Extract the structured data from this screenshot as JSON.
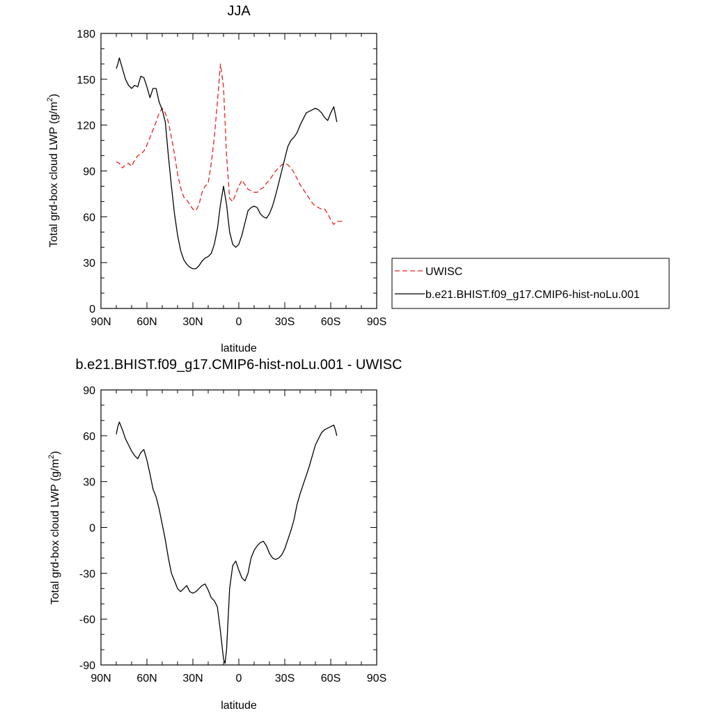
{
  "chart_data": [
    {
      "type": "line",
      "title": "JJA",
      "xlabel": "latitude",
      "ylabel": "Total grd-box cloud LWP (g/m²)",
      "ylabel_main": "Total grd-box cloud LWP (g/m",
      "ylabel_sup": "2",
      "ylabel_end": ")",
      "xlim": [
        90,
        -90
      ],
      "ylim": [
        0,
        180
      ],
      "xticks": [
        90,
        60,
        30,
        0,
        -30,
        -60,
        -90
      ],
      "xtick_labels": [
        "90N",
        "60N",
        "30N",
        "0",
        "30S",
        "60S",
        "90S"
      ],
      "yticks": [
        0,
        30,
        60,
        90,
        120,
        150,
        180
      ],
      "ytick_labels": [
        "0",
        "30",
        "60",
        "90",
        "120",
        "150",
        "180"
      ],
      "legend_position": "right",
      "series": [
        {
          "name": "UWISC",
          "color": "#e8201c",
          "dashed": true,
          "x": [
            80,
            78,
            76,
            74,
            72,
            70,
            68,
            66,
            64,
            62,
            60,
            58,
            56,
            54,
            52,
            50,
            48,
            46,
            44,
            42,
            40,
            38,
            36,
            34,
            32,
            30,
            28,
            26,
            24,
            22,
            20,
            18,
            16,
            14,
            12,
            10,
            8,
            6,
            4,
            2,
            0,
            -2,
            -4,
            -6,
            -8,
            -10,
            -12,
            -14,
            -16,
            -18,
            -20,
            -22,
            -24,
            -26,
            -28,
            -30,
            -32,
            -34,
            -36,
            -38,
            -40,
            -42,
            -44,
            -46,
            -48,
            -50,
            -52,
            -54,
            -56,
            -58,
            -60,
            -62,
            -64,
            -66,
            -68
          ],
          "y": [
            96,
            95,
            92,
            94,
            95,
            93,
            97,
            100,
            101,
            103,
            107,
            112,
            117,
            122,
            128,
            131,
            128,
            122,
            112,
            101,
            88,
            79,
            73,
            71,
            68,
            65,
            64,
            68,
            76,
            80,
            82,
            95,
            112,
            135,
            160,
            145,
            100,
            72,
            70,
            75,
            80,
            84,
            81,
            78,
            77,
            76,
            76,
            78,
            79,
            82,
            84,
            87,
            90,
            92,
            94,
            95,
            94,
            92,
            89,
            85,
            81,
            78,
            75,
            72,
            69,
            67,
            66,
            65,
            65,
            62,
            58,
            55,
            57,
            57,
            57
          ]
        },
        {
          "name": "b.e21.BHIST.f09_g17.CMIP6-hist-noLu.001",
          "color": "#000000",
          "dashed": false,
          "x": [
            80,
            79,
            78,
            76,
            74,
            72,
            70,
            68,
            66,
            64,
            62,
            60,
            58,
            56,
            54,
            52,
            50,
            48,
            46,
            44,
            42,
            40,
            38,
            36,
            34,
            32,
            30,
            28,
            26,
            24,
            22,
            20,
            18,
            16,
            14,
            12,
            10,
            8,
            6,
            4,
            2,
            0,
            -2,
            -4,
            -6,
            -8,
            -10,
            -12,
            -14,
            -16,
            -18,
            -20,
            -22,
            -24,
            -26,
            -28,
            -30,
            -32,
            -34,
            -36,
            -38,
            -40,
            -42,
            -44,
            -46,
            -48,
            -50,
            -52,
            -54,
            -56,
            -58,
            -60,
            -62,
            -63,
            -64
          ],
          "y": [
            157,
            160,
            164,
            157,
            150,
            146,
            144,
            146,
            145,
            152,
            151,
            145,
            138,
            144,
            144,
            135,
            130,
            122,
            100,
            80,
            62,
            48,
            38,
            32,
            29,
            27,
            26,
            26,
            28,
            31,
            33,
            34,
            36,
            42,
            52,
            68,
            80,
            68,
            50,
            42,
            40,
            42,
            48,
            56,
            64,
            66,
            67,
            66,
            62,
            60,
            59,
            62,
            67,
            74,
            82,
            90,
            98,
            106,
            110,
            112,
            115,
            120,
            124,
            128,
            129,
            130,
            131,
            130,
            128,
            125,
            123,
            128,
            132,
            127,
            122
          ]
        }
      ]
    },
    {
      "type": "line",
      "title": "b.e21.BHIST.f09_g17.CMIP6-hist-noLu.001 - UWISC",
      "xlabel": "latitude",
      "ylabel": "Total grd-box cloud LWP (g/m²)",
      "ylabel_main": "Total grd-box cloud LWP (g/m",
      "ylabel_sup": "2",
      "ylabel_end": ")",
      "xlim": [
        90,
        -90
      ],
      "ylim": [
        -90,
        90
      ],
      "xticks": [
        90,
        60,
        30,
        0,
        -30,
        -60,
        -90
      ],
      "xtick_labels": [
        "90N",
        "60N",
        "30N",
        "0",
        "30S",
        "60S",
        "90S"
      ],
      "yticks": [
        -90,
        -60,
        -30,
        0,
        30,
        60,
        90
      ],
      "ytick_labels": [
        "-90",
        "-60",
        "-30",
        "0",
        "30",
        "60",
        "90"
      ],
      "series": [
        {
          "color": "#000000",
          "dashed": false,
          "x": [
            80,
            79,
            78,
            76,
            74,
            72,
            70,
            68,
            66,
            64,
            62,
            60,
            58,
            56,
            54,
            52,
            50,
            48,
            46,
            44,
            42,
            40,
            38,
            36,
            34,
            32,
            30,
            28,
            26,
            24,
            22,
            20,
            18,
            16,
            14,
            12,
            10,
            9,
            8,
            6,
            4,
            2,
            0,
            -2,
            -4,
            -6,
            -8,
            -10,
            -12,
            -14,
            -16,
            -18,
            -20,
            -22,
            -24,
            -26,
            -28,
            -30,
            -32,
            -34,
            -36,
            -38,
            -40,
            -42,
            -44,
            -46,
            -48,
            -50,
            -52,
            -54,
            -56,
            -58,
            -60,
            -62,
            -63,
            -64
          ],
          "y": [
            61,
            66,
            69,
            64,
            58,
            54,
            50,
            47,
            45,
            49,
            51,
            44,
            35,
            25,
            20,
            12,
            2,
            -8,
            -20,
            -30,
            -35,
            -40,
            -42,
            -40,
            -38,
            -42,
            -43,
            -42,
            -40,
            -38,
            -37,
            -41,
            -46,
            -48,
            -52,
            -68,
            -86,
            -89,
            -80,
            -40,
            -25,
            -22,
            -28,
            -33,
            -35,
            -30,
            -20,
            -15,
            -12,
            -10,
            -9,
            -12,
            -17,
            -20,
            -21,
            -20,
            -18,
            -14,
            -8,
            -2,
            5,
            15,
            22,
            28,
            34,
            40,
            47,
            54,
            58,
            62,
            64,
            65,
            66,
            67,
            64,
            60
          ]
        }
      ]
    }
  ]
}
